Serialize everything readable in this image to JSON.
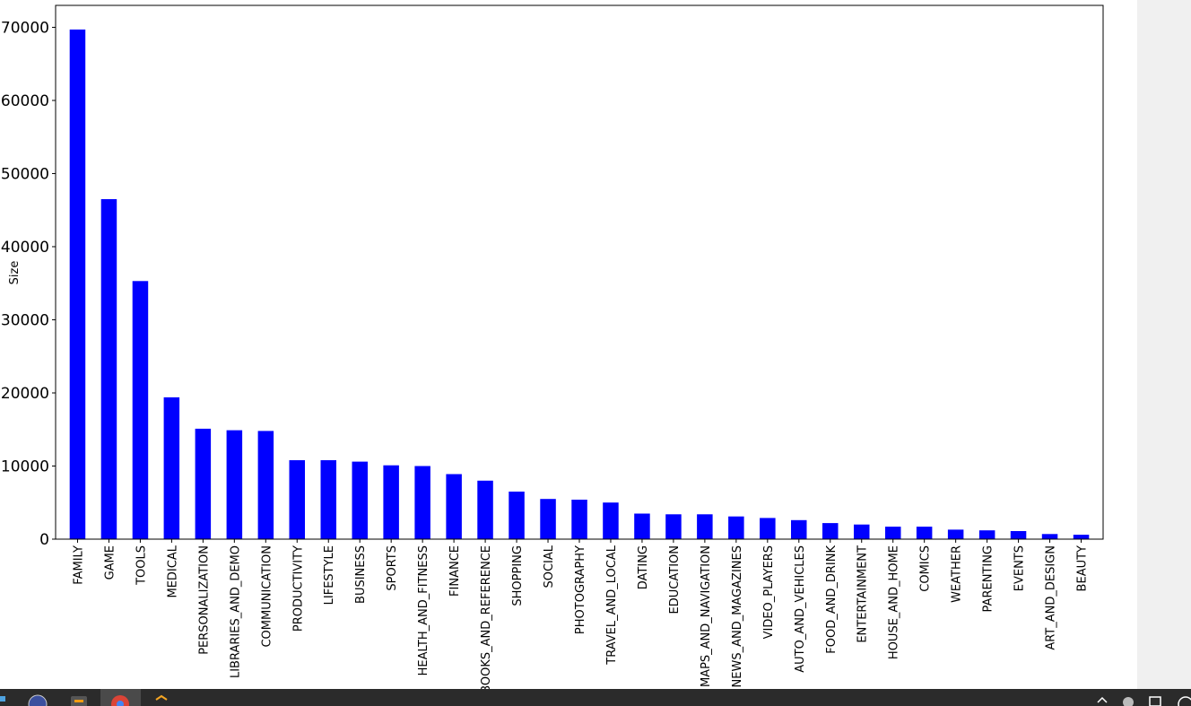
{
  "chart_data": {
    "type": "bar",
    "title": "",
    "xlabel": "",
    "ylabel": "Size",
    "ylim": [
      0,
      73000
    ],
    "yticks": [
      0,
      10000,
      20000,
      30000,
      40000,
      50000,
      60000,
      70000
    ],
    "bar_color": "#0000ff",
    "grid": false,
    "legend": "none",
    "categories": [
      "FAMILY",
      "GAME",
      "TOOLS",
      "MEDICAL",
      "PERSONALIZATION",
      "LIBRARIES_AND_DEMO",
      "COMMUNICATION",
      "PRODUCTIVITY",
      "LIFESTYLE",
      "BUSINESS",
      "SPORTS",
      "HEALTH_AND_FITNESS",
      "FINANCE",
      "BOOKS_AND_REFERENCE",
      "SHOPPING",
      "SOCIAL",
      "PHOTOGRAPHY",
      "TRAVEL_AND_LOCAL",
      "DATING",
      "EDUCATION",
      "MAPS_AND_NAVIGATION",
      "NEWS_AND_MAGAZINES",
      "VIDEO_PLAYERS",
      "AUTO_AND_VEHICLES",
      "FOOD_AND_DRINK",
      "ENTERTAINMENT",
      "HOUSE_AND_HOME",
      "COMICS",
      "WEATHER",
      "PARENTING",
      "EVENTS",
      "ART_AND_DESIGN",
      "BEAUTY"
    ],
    "values": [
      69700,
      46500,
      35300,
      19400,
      15100,
      14900,
      14800,
      10800,
      10800,
      10600,
      10100,
      10000,
      8900,
      8000,
      6500,
      5500,
      5400,
      5000,
      3500,
      3400,
      3400,
      3100,
      2900,
      2600,
      2200,
      2000,
      1700,
      1700,
      1300,
      1200,
      1100,
      700,
      600
    ]
  },
  "taskbar": {
    "icons": [
      "windows-icon",
      "file-explorer-icon",
      "sublime-text-icon",
      "chrome-icon",
      "python-icon",
      "tray-chevron-icon",
      "tray-speaker-icon",
      "tray-network-icon"
    ]
  }
}
